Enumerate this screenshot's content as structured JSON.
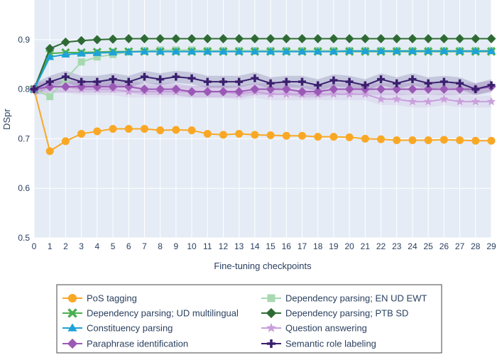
{
  "chart_data": {
    "type": "line",
    "title": "",
    "xlabel": "Fine-tuning checkpoints",
    "ylabel": "DSpr",
    "xlim": [
      0,
      29
    ],
    "ylim": [
      0.5,
      0.98
    ],
    "y_ticks": [
      "0.5",
      "0.6",
      "0.7",
      "0.8",
      "0.9"
    ],
    "y_tick_values": [
      0.5,
      0.6,
      0.7,
      0.8,
      0.9
    ],
    "x": [
      0,
      1,
      2,
      3,
      4,
      5,
      6,
      7,
      8,
      9,
      10,
      11,
      12,
      13,
      14,
      15,
      16,
      17,
      18,
      19,
      20,
      21,
      22,
      23,
      24,
      25,
      26,
      27,
      28,
      29
    ],
    "legend_position": "bottom",
    "series": [
      {
        "name": "PoS tagging",
        "color": "#f9a825",
        "marker": "circle",
        "values": [
          0.8,
          0.675,
          0.695,
          0.71,
          0.715,
          0.72,
          0.72,
          0.72,
          0.717,
          0.718,
          0.717,
          0.71,
          0.708,
          0.71,
          0.708,
          0.707,
          0.706,
          0.706,
          0.704,
          0.704,
          0.703,
          0.7,
          0.699,
          0.697,
          0.697,
          0.697,
          0.698,
          0.697,
          0.696,
          0.696
        ]
      },
      {
        "name": "Dependency parsing; EN UD EWT",
        "color": "#a8d8b0",
        "marker": "square",
        "values": [
          0.8,
          0.785,
          0.82,
          0.855,
          0.865,
          0.87,
          0.875,
          0.878,
          0.879,
          0.879,
          0.879,
          0.878,
          0.878,
          0.878,
          0.878,
          0.878,
          0.878,
          0.878,
          0.878,
          0.878,
          0.878,
          0.878,
          0.878,
          0.878,
          0.878,
          0.878,
          0.878,
          0.878,
          0.878,
          0.878
        ]
      },
      {
        "name": "Dependency parsing; UD multilingual",
        "color": "#4caf50",
        "marker": "x",
        "values": [
          0.8,
          0.872,
          0.874,
          0.874,
          0.875,
          0.876,
          0.876,
          0.876,
          0.876,
          0.876,
          0.876,
          0.876,
          0.876,
          0.876,
          0.876,
          0.876,
          0.876,
          0.876,
          0.876,
          0.876,
          0.876,
          0.876,
          0.876,
          0.876,
          0.876,
          0.876,
          0.876,
          0.876,
          0.876,
          0.876
        ]
      },
      {
        "name": "Dependency parsing; PTB SD",
        "color": "#2e6b34",
        "marker": "diamond",
        "values": [
          0.8,
          0.882,
          0.895,
          0.898,
          0.9,
          0.901,
          0.902,
          0.902,
          0.902,
          0.902,
          0.902,
          0.902,
          0.902,
          0.902,
          0.902,
          0.902,
          0.902,
          0.902,
          0.902,
          0.902,
          0.902,
          0.902,
          0.902,
          0.902,
          0.902,
          0.902,
          0.902,
          0.902,
          0.902,
          0.902
        ]
      },
      {
        "name": "Constituency parsing",
        "color": "#1ea2d8",
        "marker": "triangle-up",
        "values": [
          0.8,
          0.865,
          0.87,
          0.872,
          0.873,
          0.874,
          0.875,
          0.876,
          0.876,
          0.876,
          0.876,
          0.876,
          0.876,
          0.876,
          0.876,
          0.876,
          0.876,
          0.876,
          0.876,
          0.876,
          0.877,
          0.877,
          0.877,
          0.877,
          0.877,
          0.877,
          0.877,
          0.877,
          0.877,
          0.877
        ]
      },
      {
        "name": "Question answering",
        "color": "#c9a0dc",
        "marker": "star",
        "values": [
          0.8,
          0.805,
          0.805,
          0.8,
          0.8,
          0.8,
          0.795,
          0.795,
          0.795,
          0.795,
          0.795,
          0.795,
          0.795,
          0.79,
          0.795,
          0.79,
          0.79,
          0.79,
          0.79,
          0.79,
          0.79,
          0.79,
          0.78,
          0.78,
          0.775,
          0.775,
          0.78,
          0.775,
          0.775,
          0.775
        ]
      },
      {
        "name": "Paraphrase identification",
        "color": "#9b59b6",
        "marker": "diamond",
        "values": [
          0.8,
          0.805,
          0.805,
          0.805,
          0.805,
          0.805,
          0.805,
          0.8,
          0.8,
          0.8,
          0.795,
          0.795,
          0.795,
          0.795,
          0.8,
          0.8,
          0.8,
          0.795,
          0.795,
          0.8,
          0.8,
          0.8,
          0.8,
          0.8,
          0.8,
          0.8,
          0.8,
          0.8,
          0.8,
          0.805
        ]
      },
      {
        "name": "Semantic role labeling",
        "color": "#3a1f6e",
        "marker": "cross",
        "values": [
          0.8,
          0.815,
          0.825,
          0.815,
          0.815,
          0.82,
          0.815,
          0.825,
          0.82,
          0.825,
          0.822,
          0.815,
          0.815,
          0.815,
          0.822,
          0.812,
          0.815,
          0.815,
          0.808,
          0.818,
          0.815,
          0.808,
          0.82,
          0.812,
          0.82,
          0.812,
          0.815,
          0.812,
          0.8,
          0.808
        ]
      }
    ],
    "legend_order": [
      0,
      1,
      2,
      3,
      4,
      5,
      6,
      7
    ]
  }
}
